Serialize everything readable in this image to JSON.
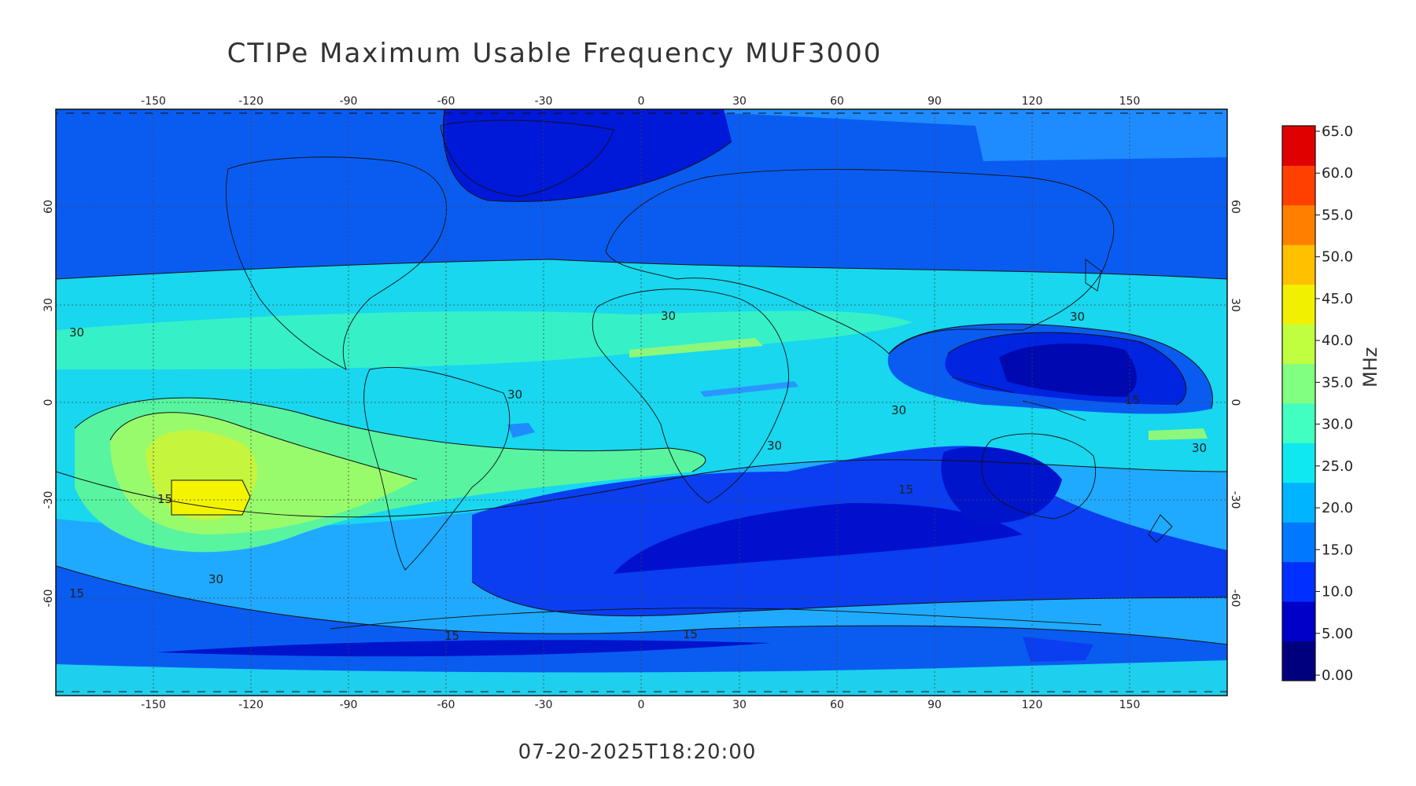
{
  "title": "CTIPe Maximum Usable Frequency MUF3000",
  "timestamp": "07-20-2025T18:20:00",
  "colorbar": {
    "label": "MHz",
    "ticks": [
      "65.0",
      "60.0",
      "55.0",
      "50.0",
      "45.0",
      "40.0",
      "35.0",
      "30.0",
      "25.0",
      "20.0",
      "15.0",
      "10.0",
      "5.00",
      "0.00"
    ],
    "range": [
      0,
      65
    ],
    "colors": [
      "#00007f",
      "#0000c8",
      "#0030ff",
      "#0078ff",
      "#00b4ff",
      "#10e8f0",
      "#40ffc0",
      "#80ff80",
      "#c0ff40",
      "#f0f000",
      "#ffc000",
      "#ff8000",
      "#ff4000",
      "#e00000"
    ]
  },
  "map": {
    "projection": "cylindrical",
    "lon_range": [
      -180,
      180
    ],
    "lat_range": [
      -90,
      90
    ],
    "lon_ticks": [
      "-150",
      "-120",
      "-90",
      "-60",
      "-30",
      "0",
      "30",
      "60",
      "90",
      "120",
      "150"
    ],
    "lat_ticks": [
      "60",
      "30",
      "0",
      "-30",
      "-60"
    ],
    "grid": true,
    "contour_labels": [
      "30",
      "30",
      "30",
      "30",
      "30",
      "30",
      "30",
      "30",
      "15",
      "15",
      "15",
      "15",
      "15",
      "15"
    ]
  }
}
